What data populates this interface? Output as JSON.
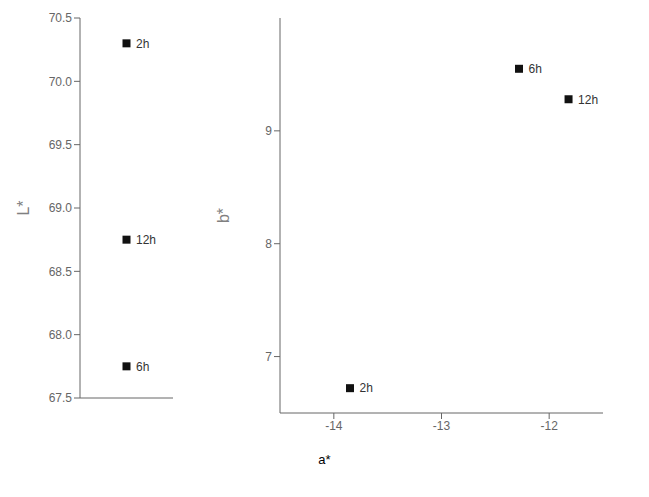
{
  "chart_data": [
    {
      "type": "scatter",
      "ylabel": "L*",
      "xlim": [
        0,
        1
      ],
      "ylim": [
        67.5,
        70.5
      ],
      "yticks": [
        67.5,
        {
          "value": 68.0,
          "label": "68.0"
        },
        68.5,
        {
          "value": 69.0,
          "label": "69.0"
        },
        69.5,
        {
          "value": 70.0,
          "label": "70.0"
        },
        70.5
      ],
      "tick_labels": "y",
      "x": [
        0.5,
        0.5,
        0.5
      ],
      "values": [
        70.3,
        68.75,
        67.75
      ],
      "labels": [
        "2h",
        "12h",
        "6h"
      ],
      "marker": "square",
      "color": "#111111"
    },
    {
      "type": "scatter",
      "ylabel": "b*",
      "xlabel": "a*",
      "xlim": [
        -14.5,
        -11.5
      ],
      "xticks": [
        -14,
        -13,
        -12
      ],
      "ylim": [
        6.5,
        10.0
      ],
      "yticks": [
        7,
        8,
        9
      ],
      "x": [
        -13.85,
        -12.28,
        -11.82
      ],
      "values": [
        6.72,
        9.55,
        9.28
      ],
      "labels": [
        "2h",
        "6h",
        "12h"
      ],
      "marker": "square",
      "color": "#111111"
    }
  ]
}
